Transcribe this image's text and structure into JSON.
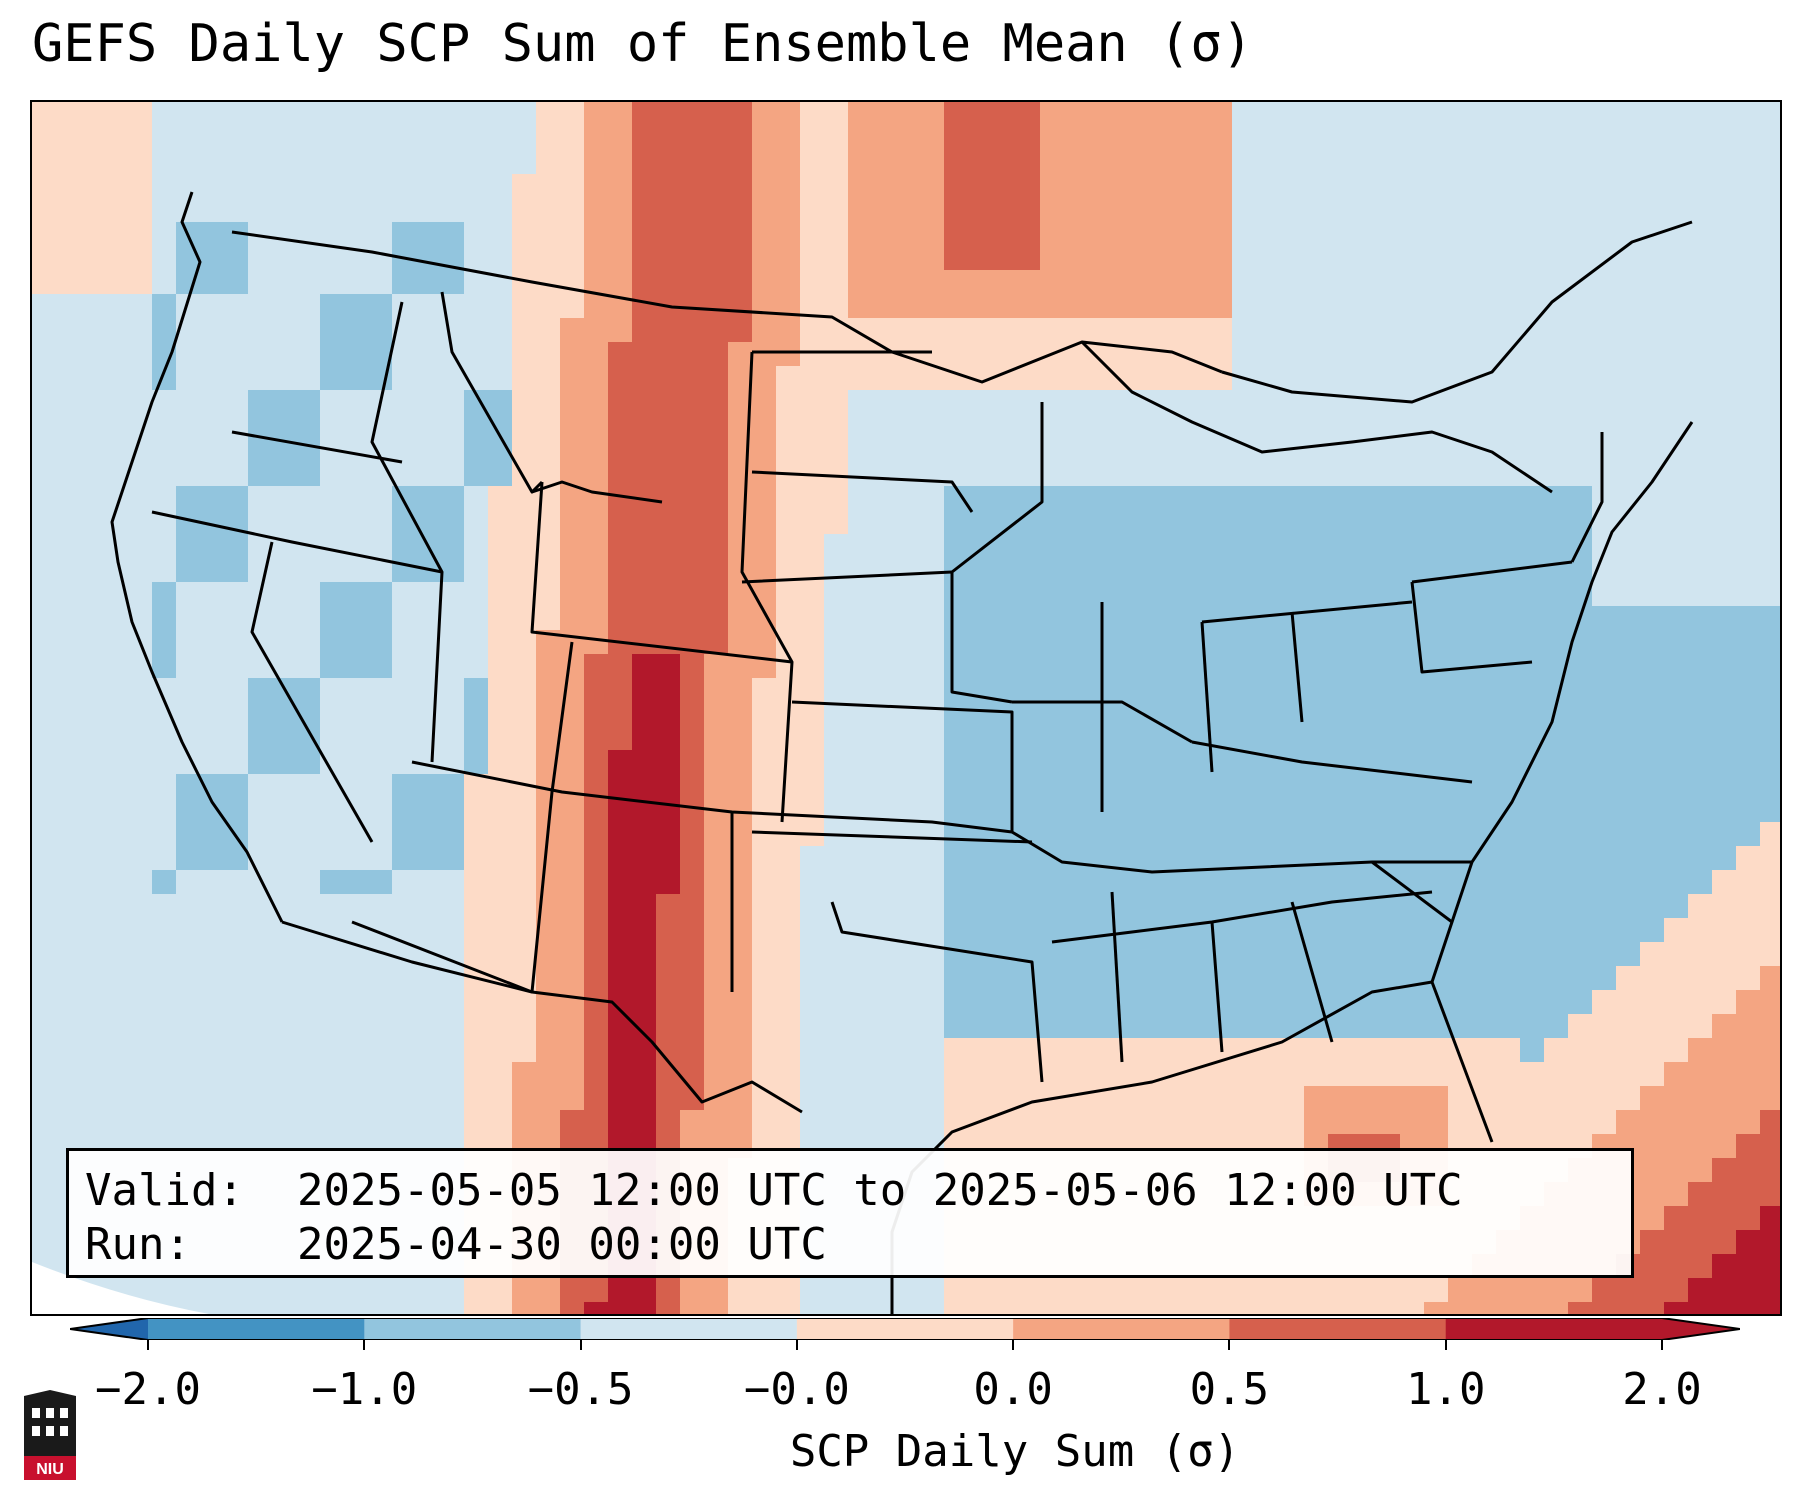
{
  "title": "GEFS Daily SCP Sum of Ensemble Mean (σ)",
  "info": {
    "valid_label": "Valid:",
    "valid_text": "2025-05-05 12:00 UTC to 2025-05-06 12:00 UTC",
    "run_label": "Run:",
    "run_text": "2025-04-30 00:00 UTC"
  },
  "colorbar": {
    "label": "SCP Daily Sum (σ)",
    "ticks": [
      "−2.0",
      "−1.0",
      "−0.5",
      "−0.0",
      "0.0",
      "0.5",
      "1.0",
      "2.0"
    ],
    "colors": [
      "#4393c3",
      "#92c5de",
      "#d1e5f0",
      "#fddbc7",
      "#f4a582",
      "#d6604d",
      "#b2182b"
    ],
    "extend_low_color": "#2166ac",
    "extend_high_color": "#b2182b"
  },
  "logo": {
    "icon": "niu-logo-icon",
    "text": "NIU"
  },
  "legend_map": {
    "field_levels": [
      "very-negative",
      "negative",
      "slightly-negative",
      "slightly-positive",
      "positive",
      "high",
      "very-high"
    ]
  }
}
